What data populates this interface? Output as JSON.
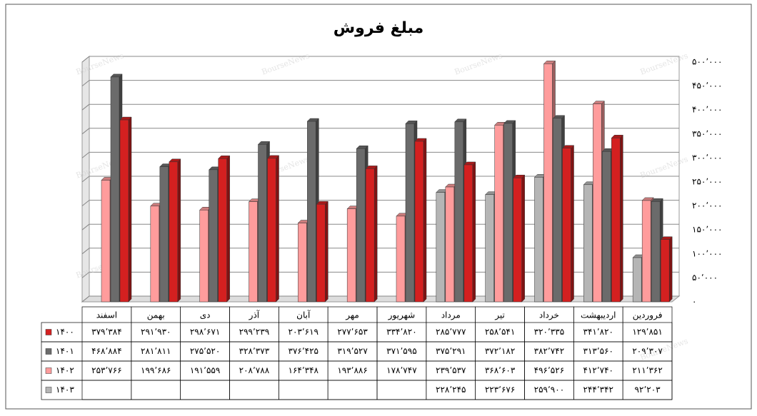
{
  "chart_data": {
    "type": "bar3d",
    "title": "مبلغ فروش",
    "watermark": "BourseNews",
    "categories": [
      "فروردین",
      "اردیبهشت",
      "خرداد",
      "تیر",
      "مرداد",
      "شهریور",
      "مهر",
      "آبان",
      "آذر",
      "دی",
      "بهمن",
      "اسفند"
    ],
    "series": [
      {
        "name": "۱۴۰۰",
        "color": "#d42020",
        "values": [
          129851,
          341820,
          320335,
          258541,
          285777,
          334820,
          277653,
          203619,
          299239,
          298671,
          291930,
          379384
        ],
        "value_labels": [
          "۱۲۹٬۸۵۱",
          "۳۴۱٬۸۲۰",
          "۳۲۰٬۳۳۵",
          "۲۵۸٬۵۴۱",
          "۲۸۵٬۷۷۷",
          "۳۳۴٬۸۲۰",
          "۲۷۷٬۶۵۳",
          "۲۰۳٬۶۱۹",
          "۲۹۹٬۲۳۹",
          "۲۹۸٬۶۷۱",
          "۲۹۱٬۹۳۰",
          "۳۷۹٬۳۸۴"
        ]
      },
      {
        "name": "۱۴۰۱",
        "color": "#6b6b6b",
        "values": [
          209307,
          313560,
          382742,
          372182,
          375291,
          371595,
          319527,
          376425,
          328373,
          275520,
          281811,
          468884
        ],
        "value_labels": [
          "۲۰۹٬۳۰۷",
          "۳۱۳٬۵۶۰",
          "۳۸۲٬۷۴۲",
          "۳۷۲٬۱۸۲",
          "۳۷۵٬۲۹۱",
          "۳۷۱٬۵۹۵",
          "۳۱۹٬۵۲۷",
          "۳۷۶٬۴۲۵",
          "۳۲۸٬۳۷۳",
          "۲۷۵٬۵۲۰",
          "۲۸۱٬۸۱۱",
          "۴۶۸٬۸۸۴"
        ]
      },
      {
        "name": "۱۴۰۲",
        "color": "#ff9c9c",
        "values": [
          211362,
          412740,
          496526,
          368603,
          239537,
          178747,
          193886,
          164348,
          208788,
          191559,
          199686,
          253766
        ],
        "value_labels": [
          "۲۱۱٬۳۶۲",
          "۴۱۲٬۷۴۰",
          "۴۹۶٬۵۲۶",
          "۳۶۸٬۶۰۳",
          "۲۳۹٬۵۳۷",
          "۱۷۸٬۷۴۷",
          "۱۹۳٬۸۸۶",
          "۱۶۴٬۳۴۸",
          "۲۰۸٬۷۸۸",
          "۱۹۱٬۵۵۹",
          "۱۹۹٬۶۸۶",
          "۲۵۳٬۷۶۶"
        ]
      },
      {
        "name": "۱۴۰۳",
        "color": "#b5b5b5",
        "values": [
          92203,
          244342,
          259900,
          223676,
          228245,
          null,
          null,
          null,
          null,
          null,
          null,
          null
        ],
        "value_labels": [
          "۹۲٬۲۰۳",
          "۲۴۴٬۳۴۲",
          "۲۵۹٬۹۰۰",
          "۲۲۳٬۶۷۶",
          "۲۲۸٬۲۴۵",
          null,
          null,
          null,
          null,
          null,
          null,
          null
        ]
      }
    ],
    "ylim": [
      0,
      500000
    ],
    "yticks": [
      {
        "value": 0,
        "label": "۰"
      },
      {
        "value": 50000,
        "label": "۵۰٬۰۰۰"
      },
      {
        "value": 100000,
        "label": "۱۰۰٬۰۰۰"
      },
      {
        "value": 150000,
        "label": "۱۵۰٬۰۰۰"
      },
      {
        "value": 200000,
        "label": "۲۰۰٬۰۰۰"
      },
      {
        "value": 250000,
        "label": "۲۵۰٬۰۰۰"
      },
      {
        "value": 300000,
        "label": "۳۰۰٬۰۰۰"
      },
      {
        "value": 350000,
        "label": "۳۵۰٬۰۰۰"
      },
      {
        "value": 400000,
        "label": "۴۰۰٬۰۰۰"
      },
      {
        "value": 450000,
        "label": "۴۵۰٬۰۰۰"
      },
      {
        "value": 500000,
        "label": "۵۰۰٬۰۰۰"
      }
    ],
    "grid": true
  }
}
